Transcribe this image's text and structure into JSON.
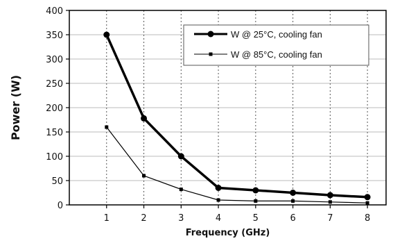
{
  "chart_data": {
    "type": "line",
    "xlabel": "Frequency (GHz)",
    "ylabel": "Power (W)",
    "x": [
      1,
      2,
      3,
      4,
      5,
      6,
      7,
      8
    ],
    "xlim": [
      0,
      8.5
    ],
    "ylim": [
      0,
      400
    ],
    "yticks": [
      0,
      50,
      100,
      150,
      200,
      250,
      300,
      350,
      400
    ],
    "grid": "vertical dotted, horizontal solid",
    "legend_position": "top-right",
    "series": [
      {
        "name": "W @ 25°C, cooling fan",
        "values": [
          350,
          178,
          100,
          35,
          30,
          25,
          20,
          16
        ],
        "color": "#000000",
        "marker": "circle",
        "weight": "thick"
      },
      {
        "name": "W @ 85°C, cooling fan",
        "values": [
          160,
          60,
          32,
          10,
          8,
          8,
          6,
          4
        ],
        "color": "#000000",
        "marker": "square",
        "weight": "thin"
      }
    ]
  }
}
